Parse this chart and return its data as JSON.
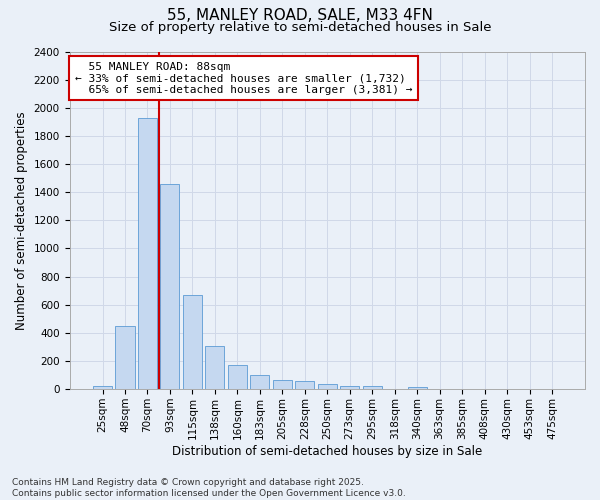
{
  "title": "55, MANLEY ROAD, SALE, M33 4FN",
  "subtitle": "Size of property relative to semi-detached houses in Sale",
  "xlabel": "Distribution of semi-detached houses by size in Sale",
  "ylabel": "Number of semi-detached properties",
  "footer": "Contains HM Land Registry data © Crown copyright and database right 2025.\nContains public sector information licensed under the Open Government Licence v3.0.",
  "categories": [
    "25sqm",
    "48sqm",
    "70sqm",
    "93sqm",
    "115sqm",
    "138sqm",
    "160sqm",
    "183sqm",
    "205sqm",
    "228sqm",
    "250sqm",
    "273sqm",
    "295sqm",
    "318sqm",
    "340sqm",
    "363sqm",
    "385sqm",
    "408sqm",
    "430sqm",
    "453sqm",
    "475sqm"
  ],
  "values": [
    25,
    450,
    1930,
    1460,
    670,
    305,
    175,
    100,
    65,
    60,
    40,
    20,
    20,
    0,
    15,
    0,
    0,
    0,
    0,
    0,
    0
  ],
  "bar_color": "#c5d8f0",
  "bar_edge_color": "#5b9bd5",
  "ylim": [
    0,
    2400
  ],
  "yticks": [
    0,
    200,
    400,
    600,
    800,
    1000,
    1200,
    1400,
    1600,
    1800,
    2000,
    2200,
    2400
  ],
  "property_label": "55 MANLEY ROAD: 88sqm",
  "pct_smaller": 33,
  "pct_larger": 65,
  "count_smaller": 1732,
  "count_larger": 3381,
  "vline_bin_index": 2,
  "annotation_box_color": "#ffffff",
  "annotation_box_edge": "#cc0000",
  "vline_color": "#cc0000",
  "grid_color": "#d0d8e8",
  "bg_color": "#eaf0f8",
  "title_fontsize": 11,
  "subtitle_fontsize": 9.5,
  "label_fontsize": 8.5,
  "tick_fontsize": 7.5,
  "footer_fontsize": 6.5
}
